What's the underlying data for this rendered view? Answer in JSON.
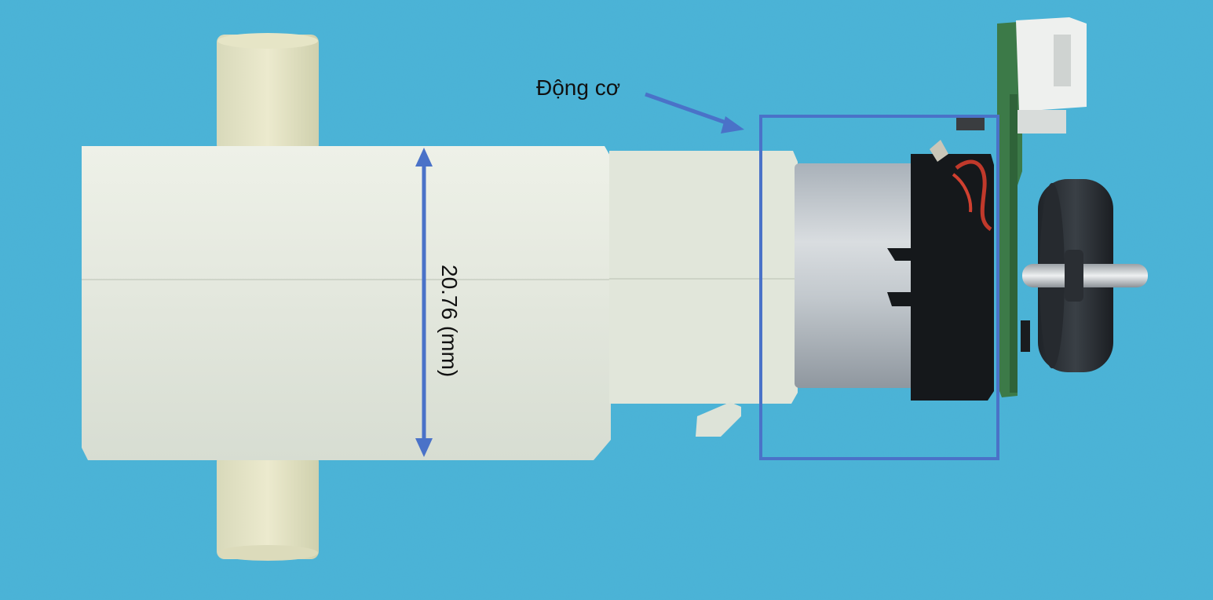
{
  "image": {
    "subject": "geared DC motor with encoder board",
    "background_color": "#4ab4d8"
  },
  "annotations": {
    "motor_label": "Động cơ",
    "dimension_label": "20.76 (mm)",
    "accent_color": "#4a72c8"
  }
}
